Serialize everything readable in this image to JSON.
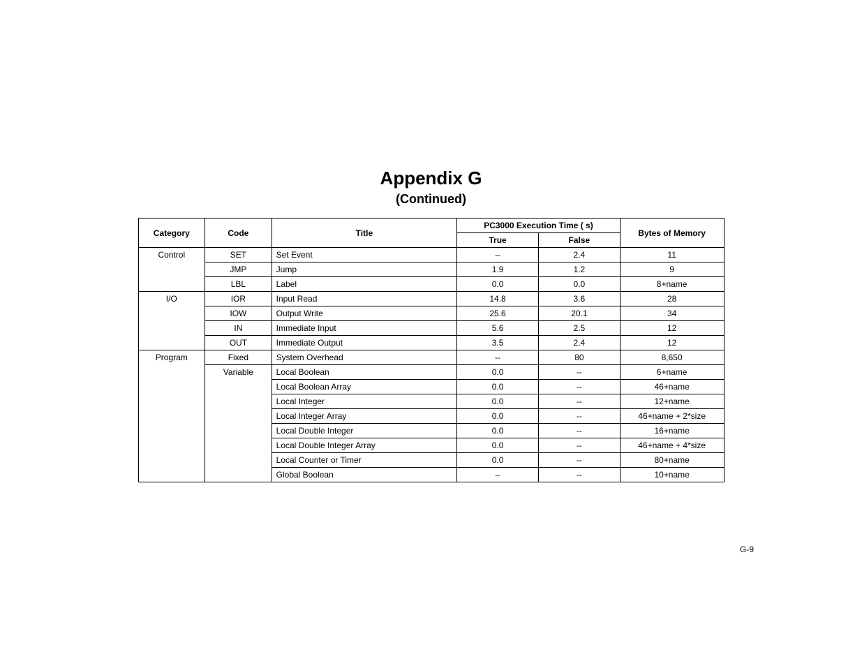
{
  "heading": {
    "title": "Appendix G",
    "subtitle": "(Continued)"
  },
  "table": {
    "exec_header": "PC3000 Execution Time (  s)",
    "headers": {
      "category": "Category",
      "code": "Code",
      "title": "Title",
      "true": "True",
      "false": "False",
      "memory": "Bytes of Memory"
    },
    "rows": [
      {
        "category": "Control",
        "code": "SET",
        "title": "Set Event",
        "true": "--",
        "false": "2.4",
        "mem": "11",
        "catFirst": true,
        "catLast": false,
        "codeShow": true
      },
      {
        "category": "",
        "code": "JMP",
        "title": "Jump",
        "true": "1.9",
        "false": "1.2",
        "mem": "9",
        "catFirst": false,
        "catLast": false,
        "codeShow": true
      },
      {
        "category": "",
        "code": "LBL",
        "title": "Label",
        "true": "0.0",
        "false": "0.0",
        "mem": "8+name",
        "catFirst": false,
        "catLast": true,
        "codeShow": true
      },
      {
        "category": "I/O",
        "code": "IOR",
        "title": "Input Read",
        "true": "14.8",
        "false": "3.6",
        "mem": "28",
        "catFirst": true,
        "catLast": false,
        "codeShow": true
      },
      {
        "category": "",
        "code": "IOW",
        "title": "Output Write",
        "true": "25.6",
        "false": "20.1",
        "mem": "34",
        "catFirst": false,
        "catLast": false,
        "codeShow": true
      },
      {
        "category": "",
        "code": "IN",
        "title": "Immediate Input",
        "true": "5.6",
        "false": "2.5",
        "mem": "12",
        "catFirst": false,
        "catLast": false,
        "codeShow": true
      },
      {
        "category": "",
        "code": "OUT",
        "title": "Immediate Output",
        "true": "3.5",
        "false": "2.4",
        "mem": "12",
        "catFirst": false,
        "catLast": true,
        "codeShow": true
      },
      {
        "category": "Program",
        "code": "Fixed",
        "title": "System Overhead",
        "true": "--",
        "false": "80",
        "mem": "8,650",
        "catFirst": true,
        "catLast": false,
        "codeShow": true
      },
      {
        "category": "",
        "code": "Variable",
        "title": "Local Boolean",
        "true": "0.0",
        "false": "--",
        "mem": "6+name",
        "catFirst": false,
        "catLast": false,
        "codeShow": true,
        "codeFirst": true
      },
      {
        "category": "",
        "code": "",
        "title": "Local Boolean Array",
        "true": "0.0",
        "false": "--",
        "mem": "46+name",
        "catFirst": false,
        "catLast": false,
        "codeShow": false
      },
      {
        "category": "",
        "code": "",
        "title": "Local Integer",
        "true": "0.0",
        "false": "--",
        "mem": "12+name",
        "catFirst": false,
        "catLast": false,
        "codeShow": false
      },
      {
        "category": "",
        "code": "",
        "title": "Local Integer Array",
        "true": "0.0",
        "false": "--",
        "mem": "46+name + 2*size",
        "catFirst": false,
        "catLast": false,
        "codeShow": false
      },
      {
        "category": "",
        "code": "",
        "title": "Local Double Integer",
        "true": "0.0",
        "false": "--",
        "mem": "16+name",
        "catFirst": false,
        "catLast": false,
        "codeShow": false
      },
      {
        "category": "",
        "code": "",
        "title": "Local Double Integer Array",
        "true": "0.0",
        "false": "--",
        "mem": "46+name + 4*size",
        "catFirst": false,
        "catLast": false,
        "codeShow": false
      },
      {
        "category": "",
        "code": "",
        "title": "Local Counter or Timer",
        "true": "0.0",
        "false": "--",
        "mem": "80+name",
        "catFirst": false,
        "catLast": false,
        "codeShow": false
      },
      {
        "category": "",
        "code": "",
        "title": "Global Boolean",
        "true": "--",
        "false": "--",
        "mem": "10+name",
        "catFirst": false,
        "catLast": true,
        "codeShow": false,
        "codeLast": true
      }
    ]
  },
  "page_number": "G-9"
}
